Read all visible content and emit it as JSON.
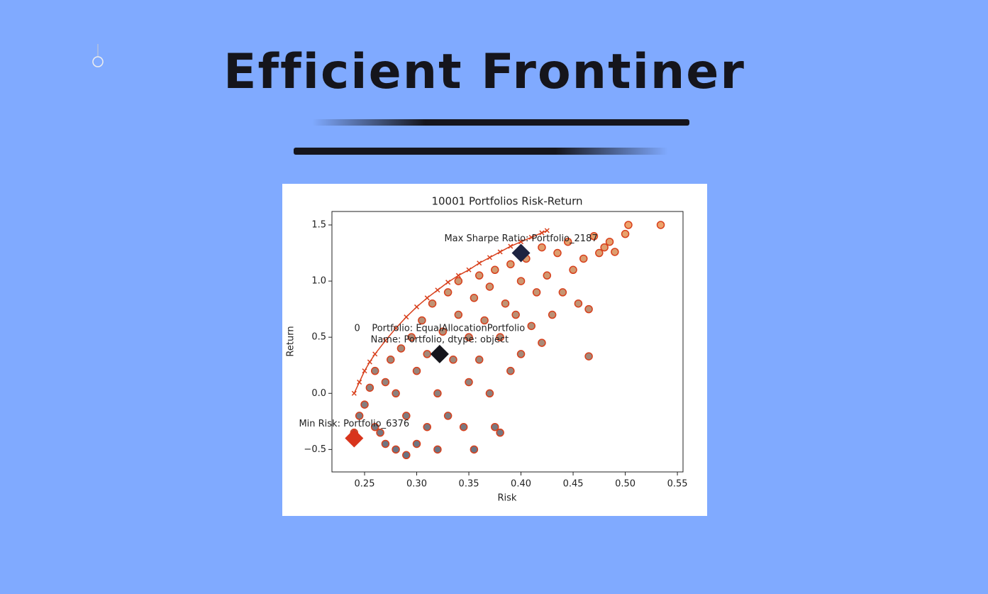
{
  "header": {
    "title": "Efficient Frontiner"
  },
  "chart_data": {
    "type": "scatter",
    "title": "10001 Portfolios Risk-Return",
    "xlabel": "Risk",
    "ylabel": "Return",
    "xlim": [
      0.2187,
      0.5554
    ],
    "ylim": [
      -0.7,
      1.62
    ],
    "xticks": [
      0.25,
      {
        "value": 0.3,
        "label": "0.30"
      },
      0.35,
      {
        "value": 0.4,
        "label": "0.40"
      },
      0.45,
      {
        "value": 0.5,
        "label": "0.50"
      },
      0.55
    ],
    "yticks": [
      {
        "value": -0.5,
        "label": "−0.5"
      },
      {
        "value": 0,
        "label": "0.0"
      },
      0.5,
      {
        "value": 1,
        "label": "1.0"
      },
      1.5
    ],
    "colormap": [
      "#5f6f85",
      "#f5a66a"
    ],
    "edgecolor": "#d8401c",
    "x": [
      0.245,
      0.25,
      0.255,
      0.26,
      0.26,
      0.265,
      0.27,
      0.27,
      0.275,
      0.28,
      0.28,
      0.285,
      0.29,
      0.29,
      0.295,
      0.3,
      0.3,
      0.305,
      0.31,
      0.31,
      0.315,
      0.32,
      0.32,
      0.325,
      0.33,
      0.33,
      0.335,
      0.34,
      0.34,
      0.345,
      0.35,
      0.35,
      0.355,
      0.355,
      0.36,
      0.36,
      0.365,
      0.37,
      0.37,
      0.375,
      0.375,
      0.38,
      0.385,
      0.39,
      0.39,
      0.395,
      0.4,
      0.4,
      0.405,
      0.41,
      0.415,
      0.42,
      0.42,
      0.425,
      0.43,
      0.435,
      0.44,
      0.445,
      0.45,
      0.455,
      0.46,
      0.465,
      0.465,
      0.47,
      0.475,
      0.48,
      0.485,
      0.49,
      0.5,
      0.503,
      0.534,
      0.38,
      0.24
    ],
    "y": [
      -0.2,
      -0.1,
      0.05,
      0.2,
      -0.3,
      -0.35,
      0.1,
      -0.45,
      0.3,
      -0.5,
      0,
      0.4,
      -0.55,
      -0.2,
      0.5,
      0.2,
      -0.45,
      0.65,
      -0.3,
      0.35,
      0.8,
      0,
      -0.5,
      0.55,
      0.9,
      -0.2,
      0.3,
      0.7,
      1,
      -0.3,
      0.5,
      0.1,
      0.85,
      -0.5,
      1.05,
      0.3,
      0.65,
      0,
      0.95,
      1.1,
      -0.3,
      0.5,
      0.8,
      1.15,
      0.2,
      0.7,
      1,
      0.35,
      1.2,
      0.6,
      0.9,
      1.3,
      0.45,
      1.05,
      0.7,
      1.25,
      0.9,
      1.35,
      1.1,
      0.8,
      1.2,
      0.33,
      0.75,
      1.4,
      1.25,
      1.3,
      1.35,
      1.26,
      1.42,
      1.5,
      1.5,
      -0.35,
      -0.35
    ],
    "frontier": {
      "color": "#d8401c",
      "x": [
        0.24,
        0.245,
        0.25,
        0.255,
        0.26,
        0.27,
        0.28,
        0.29,
        0.3,
        0.31,
        0.32,
        0.33,
        0.34,
        0.35,
        0.36,
        0.37,
        0.38,
        0.39,
        0.4,
        0.41,
        0.42,
        0.425
      ],
      "y": [
        0,
        0.1,
        0.2,
        0.28,
        0.35,
        0.47,
        0.58,
        0.68,
        0.77,
        0.85,
        0.92,
        0.99,
        1.05,
        1.1,
        1.16,
        1.21,
        1.26,
        1.31,
        1.35,
        1.39,
        1.43,
        1.45
      ]
    },
    "markers": [
      {
        "x": 0.4,
        "y": 1.25,
        "color": "#1c2340",
        "label": [
          "Max Sharpe Ratio: Portfolio_2187"
        ]
      },
      {
        "x": 0.322,
        "y": 0.35,
        "color": "#15151c",
        "label": [
          "0    Portfolio: EqualAllocationPortfolio",
          "Name: Portfolio, dtype: object"
        ]
      },
      {
        "x": 0.24,
        "y": -0.4,
        "color": "#d8341c",
        "label": [
          "Min Risk: Portfolio_6376"
        ]
      }
    ]
  }
}
